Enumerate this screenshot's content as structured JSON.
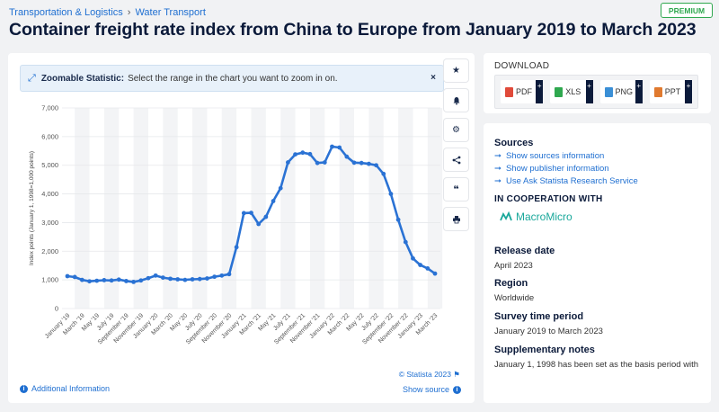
{
  "breadcrumb": {
    "category": "Transportation & Logistics",
    "sep": "›",
    "subcategory": "Water Transport"
  },
  "premium_badge": "PREMIUM",
  "title": "Container freight rate index from China to Europe from January 2019 to March 2023",
  "zoom_banner": {
    "label": "Zoomable Statistic:",
    "text": "Select the range in the chart you want to zoom in on.",
    "close": "×"
  },
  "tools": [
    "star-icon",
    "bell-icon",
    "gear-icon",
    "share-icon",
    "quote-icon",
    "print-icon"
  ],
  "chart_footer": {
    "copyright": "© Statista 2023",
    "additional_info": "Additional Information",
    "show_source": "Show source"
  },
  "download": {
    "title": "DOWNLOAD",
    "formats": [
      {
        "label": "PDF",
        "color": "#e04a3a"
      },
      {
        "label": "XLS",
        "color": "#2fa84f"
      },
      {
        "label": "PNG",
        "color": "#3a8fd6"
      },
      {
        "label": "PPT",
        "color": "#e07a2f"
      }
    ]
  },
  "sidebar": {
    "sources_title": "Sources",
    "links": [
      "Show sources information",
      "Show publisher information",
      "Use Ask Statista Research Service"
    ],
    "cooperation_title": "IN COOPERATION WITH",
    "partner": "MacroMicro",
    "release_date_label": "Release date",
    "release_date": "April 2023",
    "region_label": "Region",
    "region": "Worldwide",
    "survey_label": "Survey time period",
    "survey": "January 2019 to March 2023",
    "notes_label": "Supplementary notes",
    "notes": "January 1, 1998 has been set as the basis period with"
  },
  "chart_data": {
    "type": "line",
    "ylabel": "Index points (January 1, 1998=1,000 points)",
    "ylim": [
      0,
      7000
    ],
    "yticks": [
      "0",
      "1,000",
      "2,000",
      "3,000",
      "4,000",
      "5,000",
      "6,000",
      "7,000"
    ],
    "xticklabels": [
      "January '19",
      "March '19",
      "May '19",
      "July '19",
      "September '19",
      "November '19",
      "January '20",
      "March '20",
      "May '20",
      "July '20",
      "September '20",
      "November '20",
      "January '21",
      "March '21",
      "May '21",
      "July '21",
      "September '21",
      "November '21",
      "January '22",
      "March '22",
      "May '22",
      "July '22",
      "September '22",
      "November '22",
      "January '23",
      "March '23"
    ],
    "series": [
      {
        "name": "Freight rate index",
        "color": "#2a72d4",
        "values": [
          1130,
          1100,
          1000,
          950,
          970,
          990,
          980,
          1010,
          960,
          930,
          980,
          1060,
          1150,
          1080,
          1040,
          1020,
          1000,
          1020,
          1030,
          1050,
          1110,
          1150,
          1200,
          2140,
          3330,
          3340,
          2950,
          3200,
          3750,
          4200,
          5100,
          5380,
          5440,
          5390,
          5080,
          5100,
          5650,
          5620,
          5300,
          5090,
          5080,
          5050,
          5000,
          4700,
          4000,
          3100,
          2320,
          1750,
          1520,
          1400,
          1220
        ]
      }
    ]
  }
}
